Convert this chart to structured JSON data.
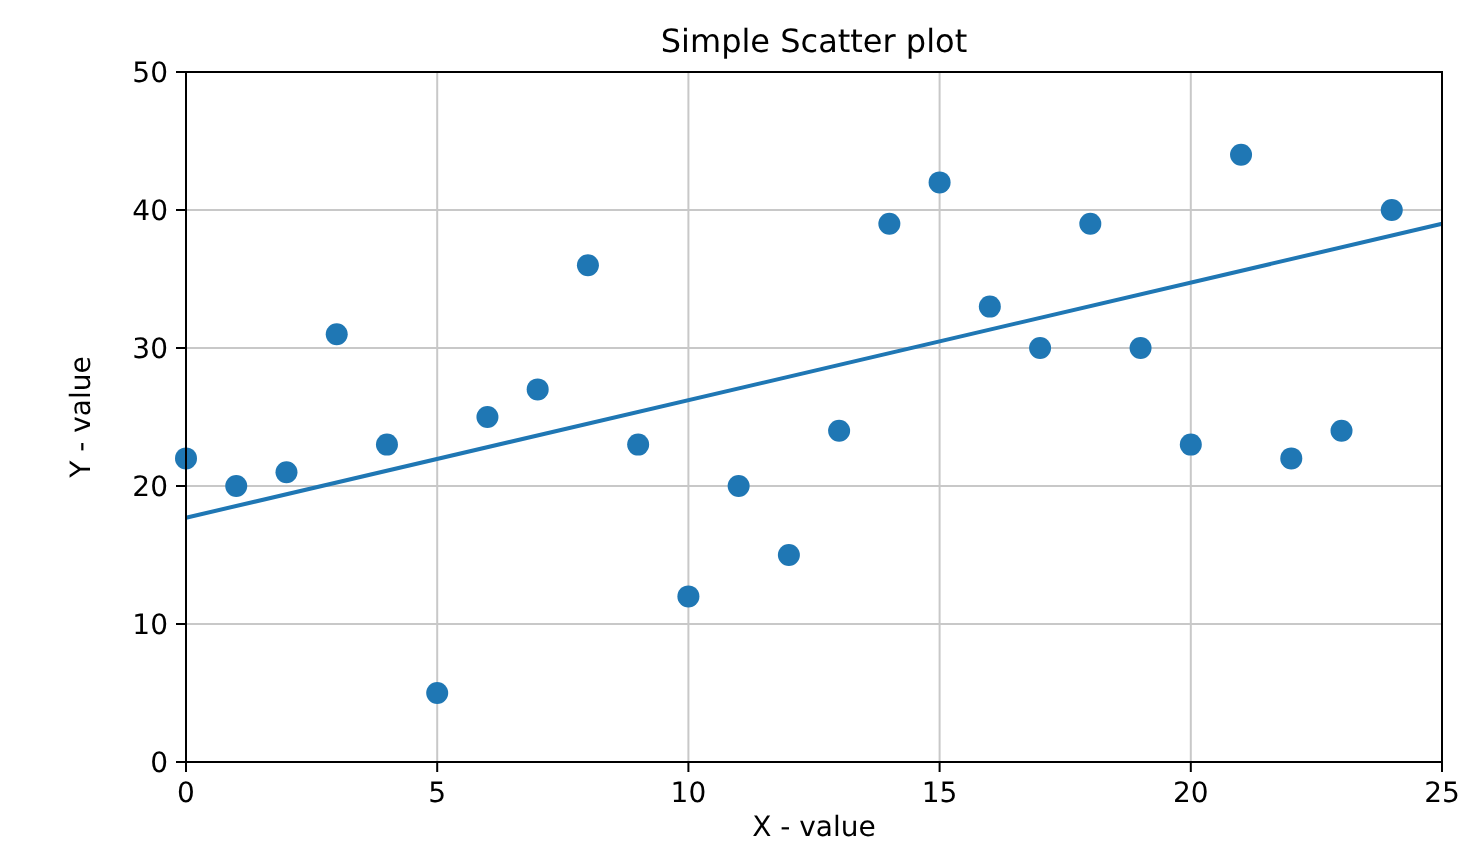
{
  "chart_data": {
    "type": "scatter",
    "title": "Simple Scatter plot",
    "xlabel": "X - value",
    "ylabel": "Y - value",
    "x": [
      0,
      1,
      2,
      3,
      4,
      5,
      6,
      7,
      8,
      9,
      10,
      11,
      12,
      13,
      14,
      15,
      16,
      17,
      18,
      19,
      20,
      21,
      22,
      23,
      24
    ],
    "series": [
      {
        "color": "#1f77b4",
        "marker": "circle",
        "values": [
          22,
          20,
          21,
          31,
          23,
          5,
          25,
          27,
          36,
          23,
          12,
          20,
          15,
          24,
          39,
          42,
          33,
          30,
          39,
          30,
          23,
          44,
          22,
          24,
          40
        ]
      },
      {
        "type": "line",
        "color": "#1f77b4",
        "x": [
          0,
          25
        ],
        "values": [
          17.7,
          39.0
        ]
      }
    ],
    "xlim": [
      0,
      25
    ],
    "xticks": [
      0,
      5,
      10,
      15,
      20,
      25
    ],
    "ylim": [
      0,
      50
    ],
    "yticks": [
      0,
      10,
      20,
      30,
      40,
      50
    ],
    "grid": true
  }
}
